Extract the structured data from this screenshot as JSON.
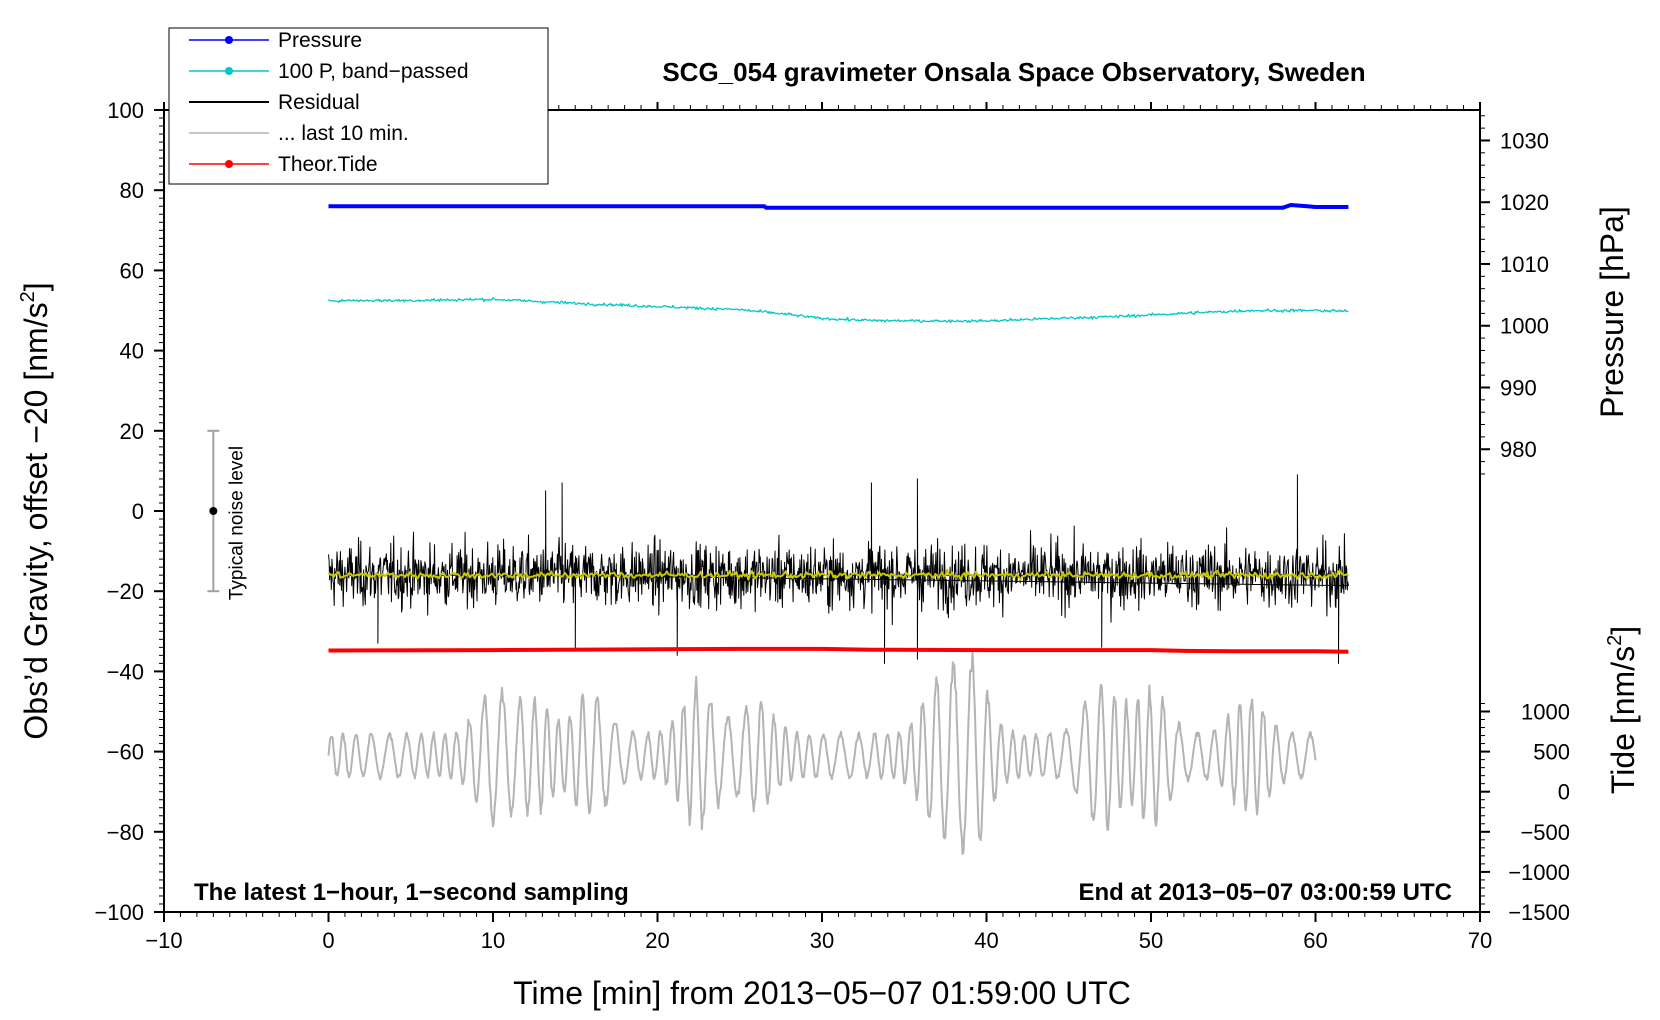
{
  "chart_data": {
    "type": "line",
    "title": "SCG_054 gravimeter Onsala Space Observatory, Sweden",
    "xlabel": "Time [min] from 2013−05−07 01:59:00 UTC",
    "ylabel_left": "Obs’d Gravity, offset −20 [nm/s",
    "ylabel_left_sup": "2",
    "ylabel_left_end": "]",
    "ylabel_pressure": "Pressure [hPa]",
    "ylabel_tide": "Tide [nm/s",
    "ylabel_tide_sup": "2",
    "ylabel_tide_end": "]",
    "xlim": [
      -10,
      70
    ],
    "ylim": [
      -100,
      100
    ],
    "x_ticks": [
      -10,
      0,
      10,
      20,
      30,
      40,
      50,
      60,
      70
    ],
    "x_tick_labels": [
      "−10",
      "0",
      "10",
      "20",
      "30",
      "40",
      "50",
      "60",
      "70"
    ],
    "y_ticks": [
      -100,
      -80,
      -60,
      -40,
      -20,
      0,
      20,
      40,
      60,
      80,
      100
    ],
    "y_tick_labels": [
      "−100",
      "−80",
      "−60",
      "−40",
      "−20",
      "0",
      "20",
      "40",
      "60",
      "80",
      "100"
    ],
    "pressure_axis": {
      "ticks": [
        980,
        990,
        1000,
        1010,
        1020,
        1030
      ],
      "tick_labels": [
        "980",
        "990",
        "1000",
        "1010",
        "1020",
        "1030"
      ],
      "ref_value": 1000,
      "ref_left_y": 46.2,
      "left_units_per_hpa": 1.54
    },
    "tide_axis": {
      "ticks": [
        -1500,
        -1000,
        -500,
        0,
        500,
        1000
      ],
      "tick_labels": [
        "−1500",
        "−1000",
        "−500",
        "0",
        "500",
        "1000"
      ],
      "ref_value": -1500,
      "ref_left_y": -100,
      "left_units_per_unit": 0.02
    },
    "annotation_left": "The latest 1−hour, 1−second sampling",
    "annotation_right": "End at 2013−05−07 03:00:59 UTC",
    "noise_bar": {
      "label": "Typical noise level",
      "x": -7,
      "center": 0,
      "low": -20,
      "high": 20
    },
    "legend": [
      {
        "label": "Pressure",
        "color": "#0000ff",
        "marker": true
      },
      {
        "label": "100 P, band−passed",
        "color": "#00c8c8",
        "marker": true
      },
      {
        "label": "Residual",
        "color": "#000000",
        "marker": false
      },
      {
        "label": "... last 10 min.",
        "color": "#b4b4b4",
        "marker": false
      },
      {
        "label": "Theor.Tide",
        "color": "#ff0000",
        "marker": true
      }
    ],
    "series": [
      {
        "name": "Pressure",
        "color": "#0000ff",
        "width": 4,
        "x": [
          0,
          10,
          20,
          26.5,
          26.6,
          40,
          50,
          58,
          58.5,
          59.5,
          60,
          62
        ],
        "y": [
          76,
          76,
          76,
          76,
          75.6,
          75.6,
          75.6,
          75.6,
          76.3,
          76.0,
          75.8,
          75.8
        ]
      },
      {
        "name": "100 P, band−passed",
        "color": "#00c8c8",
        "width": 1.3,
        "x": [
          0,
          5,
          10,
          15,
          20,
          25,
          28,
          30,
          33,
          36,
          40,
          44,
          48,
          52,
          56,
          60,
          62
        ],
        "y": [
          52.5,
          52.5,
          52.8,
          51.8,
          51.0,
          50.2,
          49.0,
          48.0,
          47.5,
          47.4,
          47.4,
          48.0,
          48.5,
          49.3,
          50.0,
          50.0,
          49.8
        ],
        "noise": 0.5
      },
      {
        "name": "Residual",
        "color": "#000000",
        "width": 1,
        "x_start": 0,
        "x_end": 62,
        "mean": -16,
        "spread": 5.5,
        "spikes": [
          {
            "x": 13.2,
            "y": 5
          },
          {
            "x": 14.2,
            "y": 7
          },
          {
            "x": 33,
            "y": 7
          },
          {
            "x": 35.8,
            "y": 8
          },
          {
            "x": 58.9,
            "y": 9
          },
          {
            "x": 21.2,
            "y": -36
          },
          {
            "x": 33.8,
            "y": -38
          },
          {
            "x": 35.8,
            "y": -37
          },
          {
            "x": 61.4,
            "y": -38
          },
          {
            "x": 3,
            "y": -33
          },
          {
            "x": 15,
            "y": -35
          },
          {
            "x": 47,
            "y": -34
          }
        ]
      },
      {
        "name": "Residual (smoothed)",
        "color": "#c8c800",
        "width": 2,
        "x_start": 0,
        "x_end": 62,
        "mean": -16,
        "spread": 0.6
      },
      {
        "name": "... last 10 min.",
        "color": "#b4b4b4",
        "width": 2,
        "x_start": 0,
        "x_end": 60,
        "mean": -61,
        "spread": 6,
        "bursts": [
          {
            "x": 10,
            "amp": 12
          },
          {
            "x": 12.5,
            "amp": 10
          },
          {
            "x": 16,
            "amp": 11
          },
          {
            "x": 22.5,
            "amp": 14
          },
          {
            "x": 26,
            "amp": 9
          },
          {
            "x": 37,
            "amp": 14
          },
          {
            "x": 39,
            "amp": 20
          },
          {
            "x": 47,
            "amp": 15
          },
          {
            "x": 50,
            "amp": 12
          },
          {
            "x": 56,
            "amp": 11
          }
        ]
      },
      {
        "name": "Theor.Tide",
        "color": "#ff0000",
        "width": 4,
        "x": [
          0,
          10,
          20,
          25,
          30,
          33,
          40,
          50,
          52,
          55,
          60,
          62
        ],
        "y": [
          -34.8,
          -34.7,
          -34.5,
          -34.4,
          -34.4,
          -34.6,
          -34.7,
          -34.7,
          -34.9,
          -35.0,
          -35.0,
          -35.1
        ]
      }
    ]
  }
}
